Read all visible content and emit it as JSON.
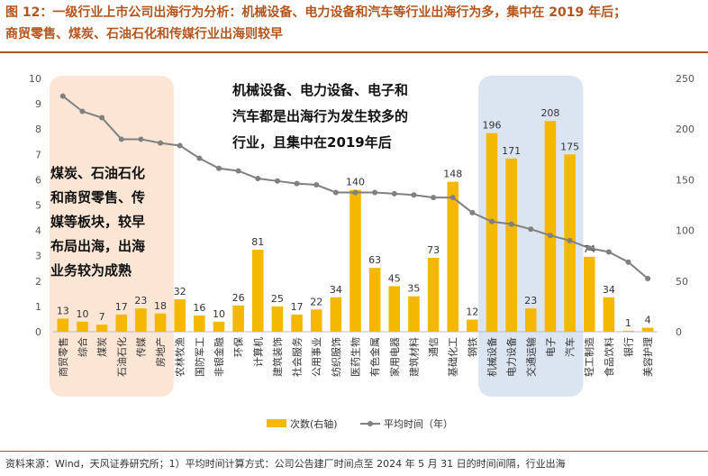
{
  "figure": {
    "title_line1": "图 12：一级行业上市公司出海行为分析：机械设备、电力设备和汽车等行业出海行为多，集中在 2019 年后；",
    "title_line2": "商贸零售、煤炭、石油石化和传媒行业出海则较早",
    "source": "资料来源：Wind，天风证券研究所；1）平均时间计算方式：公司公告建厂时间点至 2024 年 5 月 31 日的时间间隔，行业出海"
  },
  "chart_data": {
    "type": "bar+line",
    "categories": [
      "商贸零售",
      "综合",
      "煤炭",
      "石油石化",
      "传媒",
      "房地产",
      "农林牧渔",
      "国防军工",
      "非银金融",
      "环保",
      "计算机",
      "建筑装饰",
      "社会服务",
      "公用事业",
      "纺织服饰",
      "医药生物",
      "有色金属",
      "家用电器",
      "建筑材料",
      "通信",
      "基础化工",
      "钢铁",
      "机械设备",
      "电力设备",
      "交通运输",
      "电子",
      "汽车",
      "轻工制造",
      "食品饮料",
      "银行",
      "美容护理"
    ],
    "series": [
      {
        "name": "次数(右轴)",
        "type": "bar",
        "axis": "right",
        "color": "#f5b800",
        "values": [
          13,
          10,
          7,
          17,
          23,
          18,
          32,
          16,
          10,
          26,
          81,
          25,
          17,
          22,
          34,
          140,
          63,
          45,
          35,
          73,
          148,
          12,
          196,
          171,
          23,
          208,
          175,
          74,
          34,
          1,
          4
        ]
      },
      {
        "name": "平均时间（年）",
        "type": "line",
        "axis": "left",
        "color": "#808080",
        "values": [
          9.3,
          8.7,
          8.45,
          7.6,
          7.6,
          7.45,
          7.35,
          6.85,
          6.45,
          6.35,
          6.05,
          5.95,
          5.85,
          5.8,
          5.5,
          5.5,
          5.5,
          5.45,
          5.4,
          5.3,
          5.3,
          4.7,
          4.35,
          4.25,
          4.05,
          3.8,
          3.6,
          3.3,
          3.15,
          2.75,
          2.1
        ]
      }
    ],
    "left_axis": {
      "min": 0,
      "max": 10,
      "ticks": [
        0,
        1,
        2,
        3,
        4,
        5,
        6,
        7,
        8,
        9,
        10
      ]
    },
    "right_axis": {
      "min": 0,
      "max": 250,
      "ticks": [
        0,
        50,
        100,
        150,
        200,
        250
      ]
    },
    "annotations": [
      {
        "lines": [
          "机械设备、电力设备、电子和",
          "汽车都是出海行为发生较多的",
          "行业，且集中在2019年后"
        ]
      },
      {
        "lines": [
          "煤炭、石油石化",
          "和商贸零售、传",
          "媒等板块，较早",
          "布局出海，出海",
          "业务较为成熟"
        ]
      }
    ],
    "highlight_regions": [
      {
        "from": "商贸零售",
        "to": "房地产",
        "color": "#fbe6d6"
      },
      {
        "from": "机械设备",
        "to": "汽车",
        "color": "#dbe5f1"
      }
    ],
    "legend_position": "bottom",
    "grid": false
  }
}
